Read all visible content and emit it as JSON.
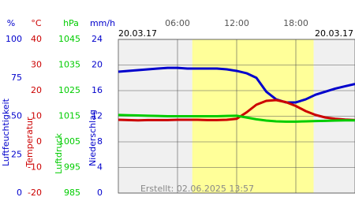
{
  "chart_data": {
    "type": "line",
    "date_left": "20.03.17",
    "date_right": "20.03.17",
    "created": "Erstellt: 02.06.2025 13:57",
    "xlim": [
      0,
      24
    ],
    "xticks": [
      {
        "value": 6,
        "label": "06:00"
      },
      {
        "value": 12,
        "label": "12:00"
      },
      {
        "value": 18,
        "label": "18:00"
      }
    ],
    "daylight": [
      7.5,
      19.8
    ],
    "grid": true,
    "axes": [
      {
        "unit": "%",
        "label": "Luftfeuchtigkeit",
        "color": "#0000cc",
        "ylim": [
          0,
          100
        ],
        "yticks": [
          0,
          25,
          50,
          75,
          100
        ]
      },
      {
        "unit": "°C",
        "label": "Temperatur",
        "color": "#cc0000",
        "ylim": [
          -20,
          40
        ],
        "yticks": [
          -20,
          -10,
          0,
          10,
          20,
          30,
          40
        ]
      },
      {
        "unit": "hPa",
        "label": "Luftdruck",
        "color": "#00cc00",
        "ylim": [
          985,
          1045
        ],
        "yticks": [
          985,
          995,
          1005,
          1015,
          1025,
          1035,
          1045
        ]
      },
      {
        "unit": "mm/h",
        "label": "Niederschlag",
        "color": "#0000cc",
        "ylim": [
          0,
          24
        ],
        "yticks": [
          0,
          4,
          8,
          12,
          16,
          20,
          24
        ]
      }
    ],
    "x": [
      0,
      1,
      2,
      3,
      4,
      5,
      6,
      7,
      8,
      9,
      10,
      11,
      12,
      13,
      14,
      15,
      16,
      17,
      18,
      19,
      20,
      21,
      22,
      23,
      24
    ],
    "series": [
      {
        "axis": 0,
        "color": "#0000cc",
        "values": [
          79,
          79.5,
          80,
          80.5,
          81,
          81.5,
          81.5,
          81,
          81,
          81,
          81,
          80.5,
          79.5,
          78,
          75,
          66,
          61,
          59,
          59,
          61,
          64,
          66,
          68,
          69.5,
          71
        ]
      },
      {
        "axis": 1,
        "color": "#cc0000",
        "values": [
          8.6,
          8.5,
          8.4,
          8.5,
          8.5,
          8.5,
          8.6,
          8.6,
          8.6,
          8.5,
          8.5,
          8.6,
          9,
          11.5,
          14.5,
          16,
          16.3,
          15.5,
          14,
          12,
          10.5,
          9.5,
          9,
          8.7,
          8.5
        ]
      },
      {
        "axis": 2,
        "color": "#00cc00",
        "values": [
          1015.5,
          1015.4,
          1015.3,
          1015.2,
          1015.1,
          1015,
          1015,
          1015,
          1015,
          1015,
          1015,
          1015.1,
          1015.2,
          1014.5,
          1013.8,
          1013.3,
          1013,
          1012.9,
          1012.9,
          1013,
          1013.1,
          1013.2,
          1013.3,
          1013.4,
          1013.4
        ]
      }
    ]
  }
}
